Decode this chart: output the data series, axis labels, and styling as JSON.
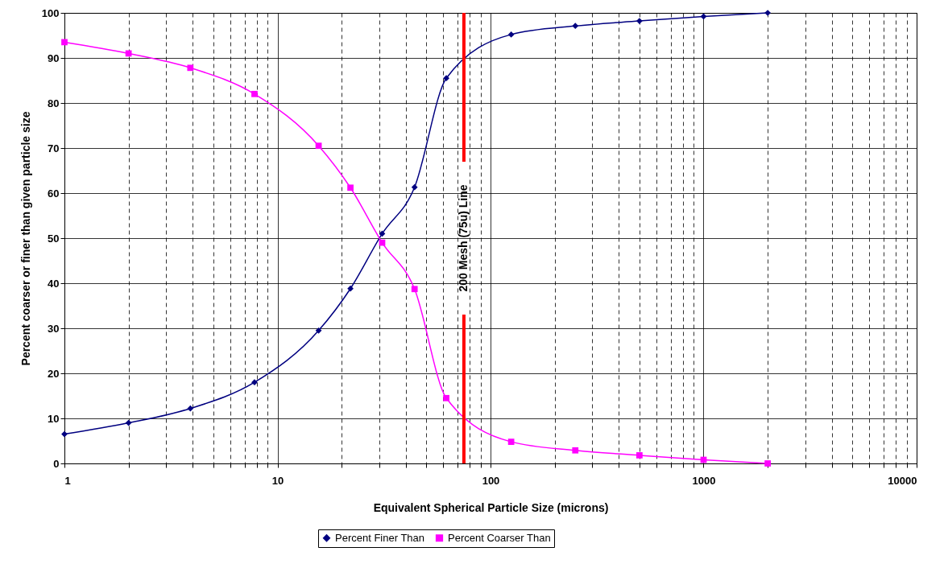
{
  "chart_data": {
    "type": "line",
    "xlabel": "Equivalent Spherical Particle Size (microns)",
    "ylabel": "Percent coarser or finer than given particle size",
    "x": [
      1,
      2,
      3.9,
      7.8,
      15.6,
      22,
      31,
      44,
      62,
      125,
      250,
      500,
      1000,
      2000
    ],
    "series": [
      {
        "name": "Percent Finer Than",
        "color": "#000080",
        "marker": "diamond",
        "values": [
          6.5,
          9,
          12.2,
          18,
          29.5,
          38.8,
          51,
          61.3,
          85.5,
          95.2,
          97.1,
          98.2,
          99.2,
          100
        ]
      },
      {
        "name": "Percent Coarser Than",
        "color": "#ff00ff",
        "marker": "square",
        "values": [
          93.5,
          91,
          87.8,
          82,
          70.5,
          61.2,
          49,
          38.7,
          14.5,
          4.8,
          2.9,
          1.8,
          0.8,
          0
        ]
      }
    ],
    "log": "x",
    "xlim": [
      1,
      10000
    ],
    "ylim": [
      0,
      100
    ],
    "xticks": [
      1,
      {
        "value": 2,
        "label": null
      },
      {
        "value": 3,
        "label": null
      },
      {
        "value": 4,
        "label": null
      },
      {
        "value": 5,
        "label": null
      },
      {
        "value": 6,
        "label": null
      },
      {
        "value": 7,
        "label": null
      },
      {
        "value": 8,
        "label": null
      },
      {
        "value": 9,
        "label": null
      },
      10,
      {
        "value": 20,
        "label": null
      },
      {
        "value": 30,
        "label": null
      },
      {
        "value": 40,
        "label": null
      },
      {
        "value": 50,
        "label": null
      },
      {
        "value": 60,
        "label": null
      },
      {
        "value": 70,
        "label": null
      },
      {
        "value": 80,
        "label": null
      },
      {
        "value": 90,
        "label": null
      },
      100,
      {
        "value": 200,
        "label": null
      },
      {
        "value": 300,
        "label": null
      },
      {
        "value": 400,
        "label": null
      },
      {
        "value": 500,
        "label": null
      },
      {
        "value": 600,
        "label": null
      },
      {
        "value": 700,
        "label": null
      },
      {
        "value": 800,
        "label": null
      },
      {
        "value": 900,
        "label": null
      },
      1000,
      {
        "value": 2000,
        "label": null
      },
      {
        "value": 3000,
        "label": null
      },
      {
        "value": 4000,
        "label": null
      },
      {
        "value": 5000,
        "label": null
      },
      {
        "value": 6000,
        "label": null
      },
      {
        "value": 7000,
        "label": null
      },
      {
        "value": 8000,
        "label": null
      },
      {
        "value": 9000,
        "label": null
      },
      10000
    ],
    "yticks": [
      0,
      10,
      20,
      30,
      40,
      50,
      60,
      70,
      80,
      90,
      100
    ],
    "grid": true,
    "legend": "bottom",
    "line_style": "solid",
    "ref_lines": [
      {
        "axis": "x",
        "value": 75,
        "label": "200 Mesh (75u) Line",
        "color": "#ff0000"
      }
    ]
  }
}
